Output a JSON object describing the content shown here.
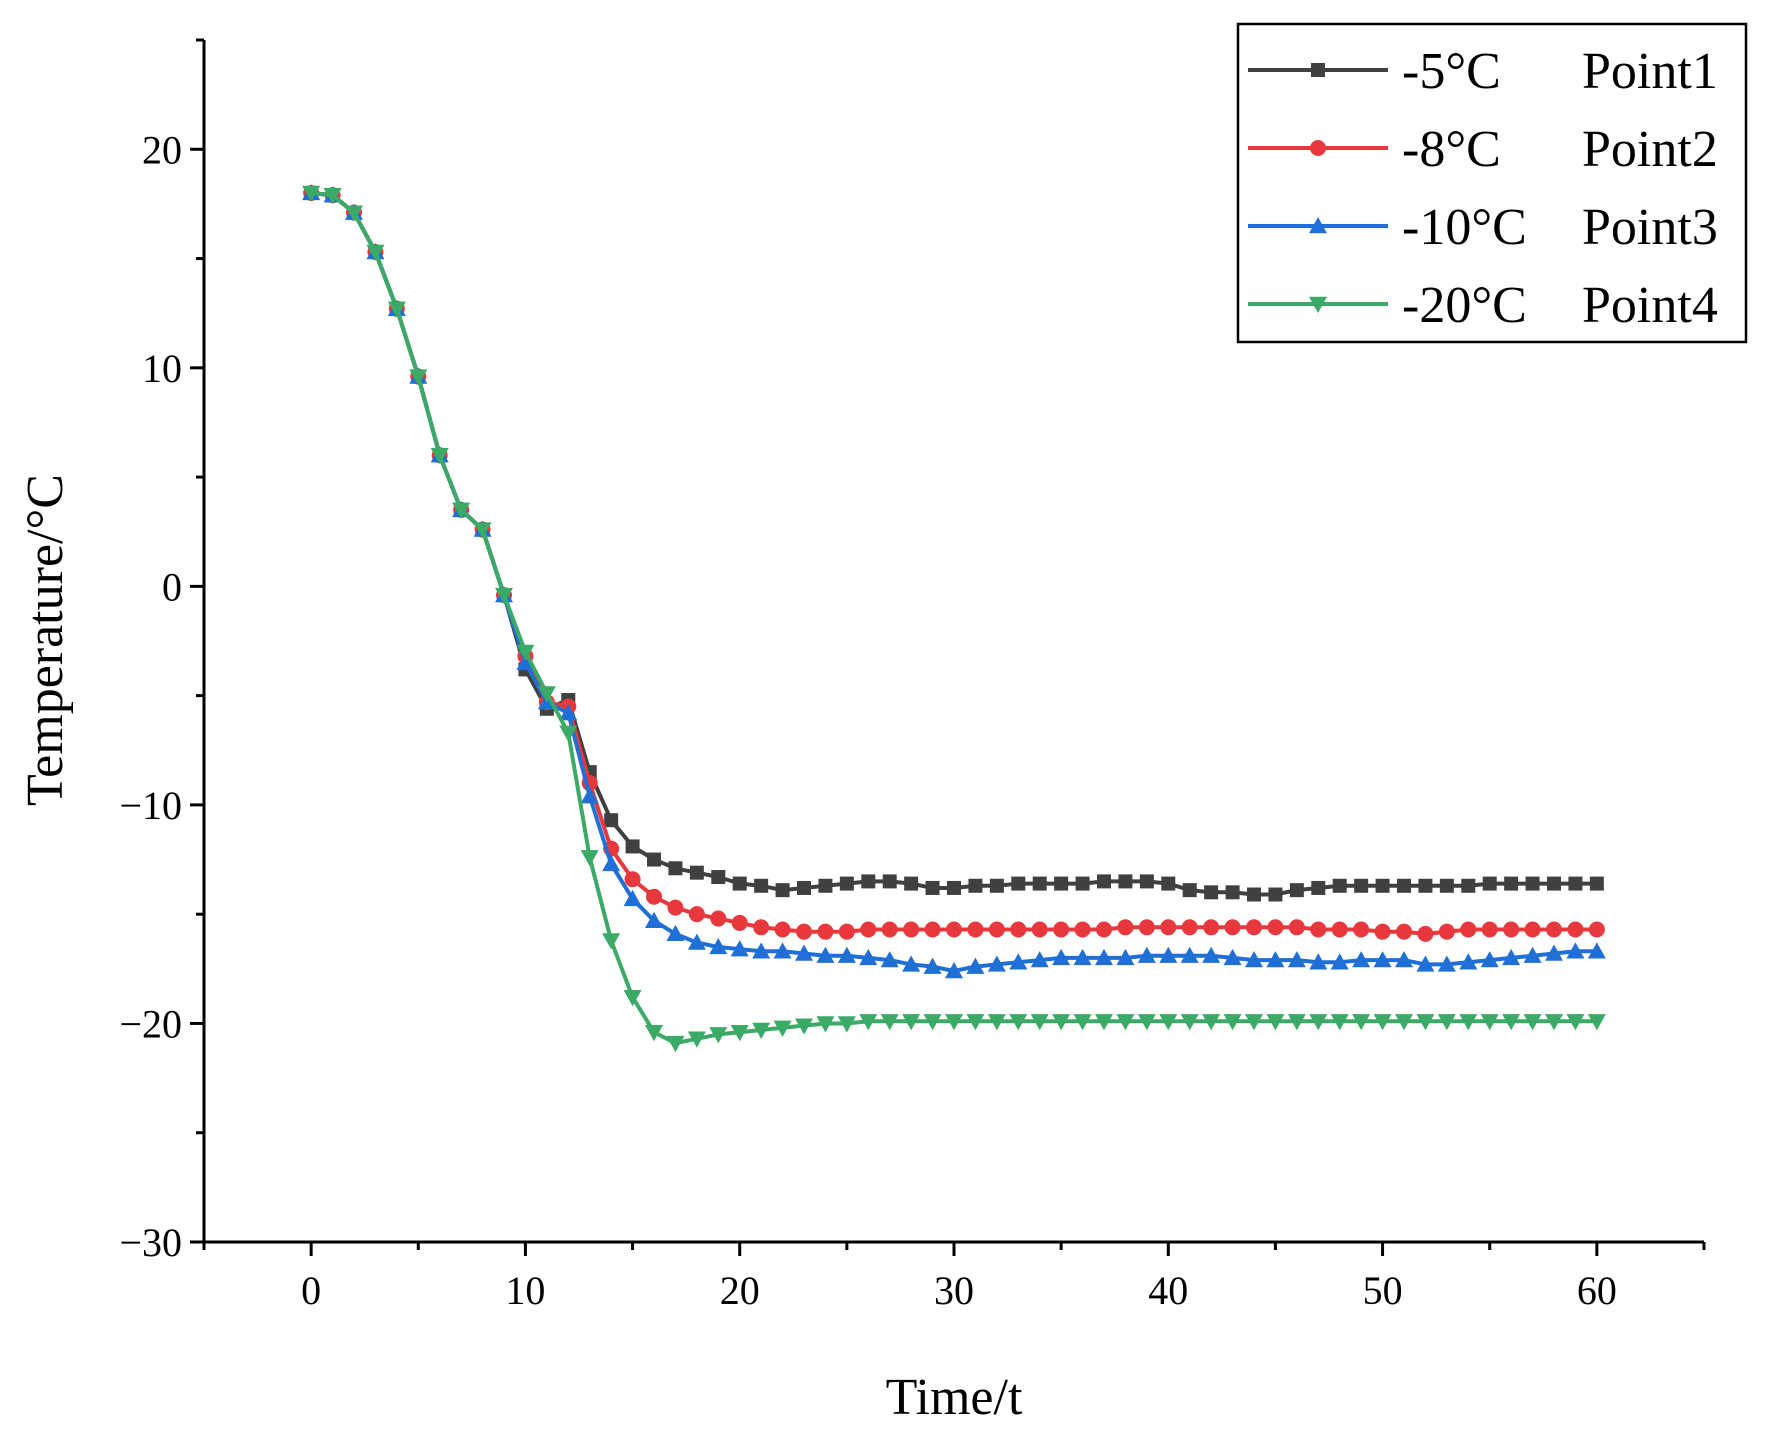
{
  "chart_data": {
    "type": "line",
    "title": "",
    "xlabel": "Time/t",
    "ylabel": "Temperature/°C",
    "xlim": [
      -5,
      65
    ],
    "ylim": [
      -30,
      25
    ],
    "xticks": [
      0,
      10,
      20,
      30,
      40,
      50,
      60
    ],
    "yticks": [
      -30,
      -20,
      -10,
      0,
      10,
      20
    ],
    "xtick_labels": [
      "0",
      "10",
      "20",
      "30",
      "40",
      "50",
      "60"
    ],
    "ytick_labels": [
      "−30",
      "−20",
      "−10",
      "0",
      "10",
      "20"
    ],
    "legend_position": "top-right",
    "x": [
      0,
      1,
      2,
      3,
      4,
      5,
      6,
      7,
      8,
      9,
      10,
      11,
      12,
      13,
      14,
      15,
      16,
      17,
      18,
      19,
      20,
      21,
      22,
      23,
      24,
      25,
      26,
      27,
      28,
      29,
      30,
      31,
      32,
      33,
      34,
      35,
      36,
      37,
      38,
      39,
      40,
      41,
      42,
      43,
      44,
      45,
      46,
      47,
      48,
      49,
      50,
      51,
      52,
      53,
      54,
      55,
      56,
      57,
      58,
      59,
      60
    ],
    "series": [
      {
        "name": "-5°C",
        "point": "Point1",
        "color": "#404040",
        "marker": "square",
        "values": [
          18.0,
          17.9,
          17.1,
          15.3,
          12.7,
          9.6,
          6.0,
          3.5,
          2.6,
          -0.4,
          -3.8,
          -5.6,
          -5.2,
          -8.5,
          -10.7,
          -11.9,
          -12.5,
          -12.9,
          -13.1,
          -13.3,
          -13.6,
          -13.7,
          -13.9,
          -13.8,
          -13.7,
          -13.6,
          -13.5,
          -13.5,
          -13.6,
          -13.8,
          -13.8,
          -13.7,
          -13.7,
          -13.6,
          -13.6,
          -13.6,
          -13.6,
          -13.5,
          -13.5,
          -13.5,
          -13.6,
          -13.9,
          -14.0,
          -14.0,
          -14.1,
          -14.1,
          -13.9,
          -13.8,
          -13.7,
          -13.7,
          -13.7,
          -13.7,
          -13.7,
          -13.7,
          -13.7,
          -13.6,
          -13.6,
          -13.6,
          -13.6,
          -13.6,
          -13.6
        ]
      },
      {
        "name": "-8°C",
        "point": "Point2",
        "color": "#e8383d",
        "marker": "circle",
        "values": [
          18.0,
          17.9,
          17.1,
          15.3,
          12.7,
          9.6,
          6.0,
          3.5,
          2.6,
          -0.4,
          -3.2,
          -5.3,
          -5.5,
          -9.0,
          -12.0,
          -13.4,
          -14.2,
          -14.7,
          -15.0,
          -15.2,
          -15.4,
          -15.6,
          -15.7,
          -15.8,
          -15.8,
          -15.8,
          -15.7,
          -15.7,
          -15.7,
          -15.7,
          -15.7,
          -15.7,
          -15.7,
          -15.7,
          -15.7,
          -15.7,
          -15.7,
          -15.7,
          -15.6,
          -15.6,
          -15.6,
          -15.6,
          -15.6,
          -15.6,
          -15.6,
          -15.6,
          -15.6,
          -15.7,
          -15.7,
          -15.7,
          -15.8,
          -15.8,
          -15.9,
          -15.8,
          -15.7,
          -15.7,
          -15.7,
          -15.7,
          -15.7,
          -15.7,
          -15.7
        ]
      },
      {
        "name": "-10°C",
        "point": "Point3",
        "color": "#1f6fd6",
        "marker": "triangle-up",
        "values": [
          18.0,
          17.9,
          17.1,
          15.3,
          12.7,
          9.6,
          6.0,
          3.5,
          2.6,
          -0.4,
          -3.5,
          -5.3,
          -5.8,
          -9.6,
          -12.7,
          -14.3,
          -15.3,
          -15.9,
          -16.3,
          -16.5,
          -16.6,
          -16.7,
          -16.7,
          -16.8,
          -16.9,
          -16.9,
          -17.0,
          -17.1,
          -17.3,
          -17.4,
          -17.6,
          -17.4,
          -17.3,
          -17.2,
          -17.1,
          -17.0,
          -17.0,
          -17.0,
          -17.0,
          -16.9,
          -16.9,
          -16.9,
          -16.9,
          -17.0,
          -17.1,
          -17.1,
          -17.1,
          -17.2,
          -17.2,
          -17.1,
          -17.1,
          -17.1,
          -17.3,
          -17.3,
          -17.2,
          -17.1,
          -17.0,
          -16.9,
          -16.8,
          -16.7,
          -16.7
        ]
      },
      {
        "name": "-20°C",
        "point": "Point4",
        "color": "#3aaa66",
        "marker": "triangle-down",
        "values": [
          18.0,
          17.9,
          17.1,
          15.3,
          12.7,
          9.6,
          6.0,
          3.5,
          2.6,
          -0.4,
          -3.0,
          -4.9,
          -6.7,
          -12.4,
          -16.2,
          -18.8,
          -20.4,
          -20.9,
          -20.7,
          -20.5,
          -20.4,
          -20.3,
          -20.2,
          -20.1,
          -20.0,
          -20.0,
          -19.9,
          -19.9,
          -19.9,
          -19.9,
          -19.9,
          -19.9,
          -19.9,
          -19.9,
          -19.9,
          -19.9,
          -19.9,
          -19.9,
          -19.9,
          -19.9,
          -19.9,
          -19.9,
          -19.9,
          -19.9,
          -19.9,
          -19.9,
          -19.9,
          -19.9,
          -19.9,
          -19.9,
          -19.9,
          -19.9,
          -19.9,
          -19.9,
          -19.9,
          -19.9,
          -19.9,
          -19.9,
          -19.9,
          -19.9,
          -19.9
        ]
      }
    ]
  }
}
